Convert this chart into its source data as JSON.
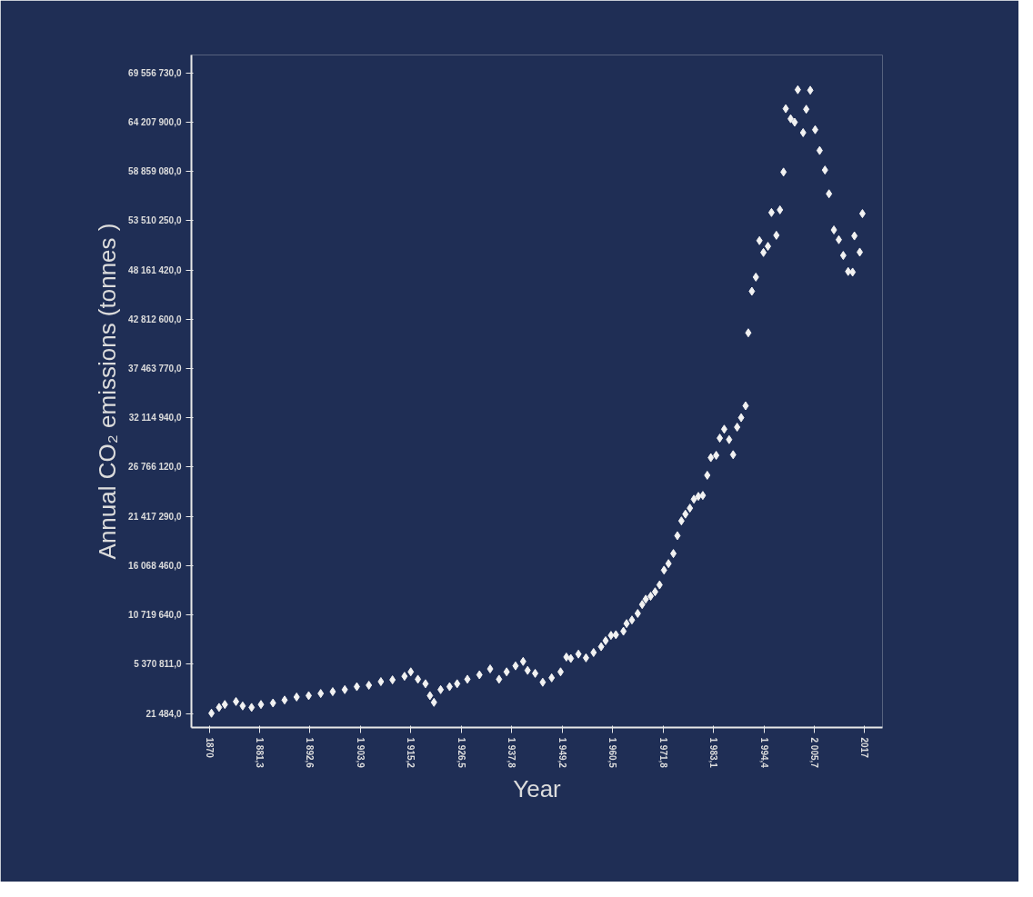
{
  "chart_data": {
    "type": "scatter",
    "xlabel": "Year",
    "ylabel": "Annual CO₂ emissions (tonnes )",
    "marker": "diamond",
    "grid": false,
    "xlim": [
      1866,
      2021
    ],
    "xticks": [
      1870,
      {
        "value": 1881.3,
        "label": "1 881,3"
      },
      {
        "value": 1892.6,
        "label": "1 892,6"
      },
      {
        "value": 1903.9,
        "label": "1 903,9"
      },
      {
        "value": 1915.2,
        "label": "1 915,2"
      },
      {
        "value": 1926.5,
        "label": "1 926,5"
      },
      {
        "value": 1937.8,
        "label": "1 937,8"
      },
      {
        "value": 1949.2,
        "label": "1 949,2"
      },
      {
        "value": 1960.5,
        "label": "1 960,5"
      },
      {
        "value": 1971.8,
        "label": "1 971,8"
      },
      {
        "value": 1983.1,
        "label": "1 983,1"
      },
      {
        "value": 1994.4,
        "label": "1 994,4"
      },
      {
        "value": 2005.7,
        "label": "2 005,7"
      },
      2017
    ],
    "ylim": [
      -1500000,
      71500000
    ],
    "yticks": [
      {
        "value": 21484,
        "label": "21 484,0"
      },
      {
        "value": 5370811,
        "label": "5 370 811,0"
      },
      {
        "value": 10719640,
        "label": "10 719 640,0"
      },
      {
        "value": 16068460,
        "label": "16 068 460,0"
      },
      {
        "value": 21417290,
        "label": "21 417 290,0"
      },
      {
        "value": 26766120,
        "label": "26 766 120,0"
      },
      {
        "value": 32114940,
        "label": "32 114 940,0"
      },
      {
        "value": 37463770,
        "label": "37 463 770,0"
      },
      {
        "value": 42812600,
        "label": "42 812 600,0"
      },
      {
        "value": 48161420,
        "label": "48 161 420,0"
      },
      {
        "value": 53510250,
        "label": "53 510 250,0"
      },
      {
        "value": 58859080,
        "label": "58 859 080,0"
      },
      {
        "value": 64207900,
        "label": "64 207 900,0"
      },
      {
        "value": 69556730,
        "label": "69 556 730,0"
      }
    ],
    "series": [
      {
        "color": "#f2f2f2",
        "x": [
          1870.5,
          1872.2,
          1873.5,
          1876.0,
          1877.5,
          1879.5,
          1881.6,
          1884.3,
          1886.9,
          1889.6,
          1892.3,
          1895.0,
          1897.7,
          1900.4,
          1903.1,
          1905.8,
          1908.5,
          1911.1,
          1913.8,
          1915.2,
          1916.8,
          1918.5,
          1919.5,
          1920.4,
          1921.9,
          1923.9,
          1925.6,
          1927.9,
          1930.6,
          1933.0,
          1935.0,
          1936.7,
          1938.7,
          1940.4,
          1941.4,
          1943.1,
          1944.8,
          1946.8,
          1948.8,
          1950.1,
          1951.1,
          1952.8,
          1954.5,
          1956.2,
          1957.9,
          1958.9,
          1960.1,
          1961.2,
          1962.9,
          1963.6,
          1964.8,
          1966.1,
          1967.1,
          1967.9,
          1969.0,
          1970.0,
          1971.0,
          1972.0,
          1973.0,
          1974.1,
          1975.0,
          1975.9,
          1976.8,
          1977.8,
          1978.7,
          1979.7,
          1980.7,
          1981.7,
          1982.5,
          1983.7,
          1984.5,
          1985.5,
          1986.6,
          1987.5,
          1988.4,
          1989.3,
          1990.3,
          1990.9,
          1991.7,
          1992.6,
          1993.4,
          1994.3,
          1995.3,
          1996.1,
          1997.2,
          1998.0,
          1998.8,
          1999.3,
          2000.4,
          2001.3,
          2002.0,
          2003.2,
          2003.9,
          2004.8,
          2005.9,
          2006.9,
          2008.1,
          2009.0,
          2010.1,
          2011.2,
          2012.2,
          2013.3,
          2014.3,
          2014.7,
          2015.9,
          2016.5
        ],
        "values": [
          50000,
          680000,
          1000000,
          1320000,
          840000,
          680000,
          1000000,
          1160000,
          1480000,
          1810000,
          1960000,
          2190000,
          2390000,
          2610000,
          2930000,
          3090000,
          3480000,
          3670000,
          4060000,
          4540000,
          3740000,
          3250000,
          1960000,
          1230000,
          2610000,
          2930000,
          3250000,
          3740000,
          4220000,
          4860000,
          3740000,
          4540000,
          5190000,
          5670000,
          4700000,
          4380000,
          3410000,
          3890000,
          4540000,
          6150000,
          5990000,
          6470000,
          6060000,
          6640000,
          7270000,
          7920000,
          8500000,
          8570000,
          8950000,
          9780000,
          10170000,
          10880000,
          11850000,
          12430000,
          12750000,
          13230000,
          13980000,
          15580000,
          16290000,
          17380000,
          19320000,
          20930000,
          21660000,
          22310000,
          23280000,
          23590000,
          23690000,
          25880000,
          27790000,
          28040000,
          29910000,
          30880000,
          29750000,
          28110000,
          31100000,
          32130000,
          33420000,
          41340000,
          45850000,
          47390000,
          51350000,
          50060000,
          50730000,
          54400000,
          51930000,
          54690000,
          58790000,
          65670000,
          64580000,
          64200000,
          67730000,
          63070000,
          65610000,
          67670000,
          63390000,
          61130000,
          59010000,
          56430000,
          52510000,
          51450000,
          49740000,
          48000000,
          47930000,
          51860000,
          50100000,
          54280000
        ]
      }
    ]
  }
}
